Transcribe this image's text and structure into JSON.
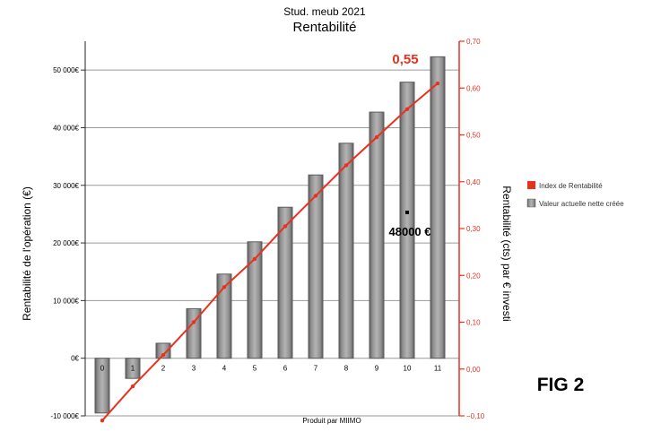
{
  "chart_data": {
    "type": "bar",
    "supertitle": "Stud. meub 2021",
    "title": "Rentabilité",
    "xlabel": "Produit par MIIMO",
    "ylabel_left": "Rentabilité de l'opération (€)",
    "ylabel_right": "Rentabilité (cts) par € investi",
    "categories": [
      "0",
      "1",
      "2",
      "3",
      "4",
      "5",
      "6",
      "7",
      "8",
      "9",
      "10",
      "11"
    ],
    "ylim_left": [
      -10000,
      55000
    ],
    "ylim_right": [
      -0.1,
      0.7
    ],
    "left_ticks": [
      {
        "v": 50000,
        "label": "50 000€"
      },
      {
        "v": 40000,
        "label": "40 000€"
      },
      {
        "v": 30000,
        "label": "30 000€"
      },
      {
        "v": 20000,
        "label": "20 000€"
      },
      {
        "v": 10000,
        "label": "10 000€"
      },
      {
        "v": 0,
        "label": "0€"
      },
      {
        "v": -10000,
        "label": "-10 000€"
      }
    ],
    "right_ticks": [
      {
        "v": 0.7,
        "label": "0,70"
      },
      {
        "v": 0.6,
        "label": "0,60"
      },
      {
        "v": 0.5,
        "label": "0,50"
      },
      {
        "v": 0.4,
        "label": "0,40"
      },
      {
        "v": 0.3,
        "label": "0,30"
      },
      {
        "v": 0.2,
        "label": "0,20"
      },
      {
        "v": 0.1,
        "label": "0,10"
      },
      {
        "v": 0.0,
        "label": "0,00"
      },
      {
        "v": -0.1,
        "label": "−0,10"
      }
    ],
    "grid": true,
    "legend_position": "right",
    "series": [
      {
        "name": "Valeur actuelle nette créée",
        "type": "bar",
        "axis": "left",
        "color": "#7a7a7a",
        "values": [
          -9500,
          -3500,
          2600,
          8600,
          14600,
          20200,
          26200,
          31800,
          37300,
          42700,
          47900,
          52300
        ]
      },
      {
        "name": "Index de Rentabilité",
        "type": "line",
        "axis": "right",
        "color": "#e8321e",
        "values": [
          -0.11,
          -0.037,
          0.03,
          0.1,
          0.175,
          0.235,
          0.305,
          0.37,
          0.435,
          0.495,
          0.555,
          0.61
        ]
      }
    ],
    "annotations": [
      {
        "text": "0,55",
        "color": "#e8321e"
      },
      {
        "text": "48000 €",
        "color": "#000000"
      },
      {
        "text": "FIG 2",
        "color": "#000000"
      }
    ]
  }
}
